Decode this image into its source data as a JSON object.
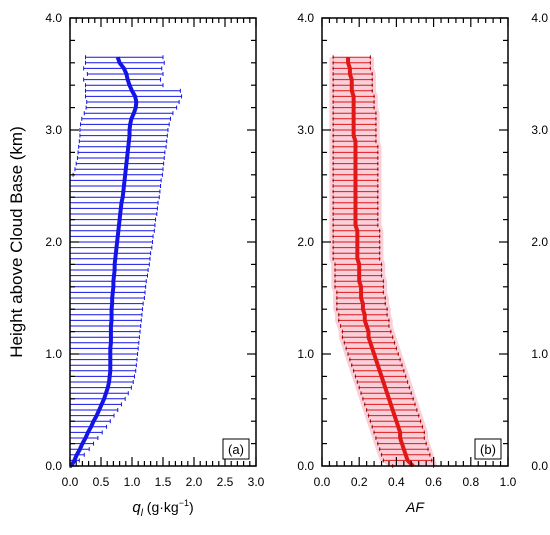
{
  "chart_data": [
    {
      "type": "line",
      "panel_label": "(a)",
      "xlabel_sym": "q",
      "xlabel_sub": "l",
      "xlabel_unit": " (g·kg",
      "xlabel_exp": "−1",
      "xlabel_close": ")",
      "ylabel": "Height above Cloud Base (km)",
      "xlim": [
        0.0,
        3.0
      ],
      "ylim": [
        0.0,
        4.0
      ],
      "x_tick_labels": [
        "0.0",
        "0.5",
        "1.0",
        "1.5",
        "2.0",
        "2.5",
        "3.0"
      ],
      "y_tick_labels": [
        "0.0",
        "1.0",
        "2.0",
        "3.0",
        "4.0"
      ],
      "line_color": "#1414e6",
      "error_color": "#1414e6",
      "series": [
        {
          "height": [
            0.0,
            0.05,
            0.1,
            0.15,
            0.2,
            0.25,
            0.3,
            0.35,
            0.4,
            0.45,
            0.5,
            0.55,
            0.6,
            0.65,
            0.7,
            0.75,
            0.8,
            0.85,
            0.9,
            0.95,
            1.0,
            1.05,
            1.1,
            1.15,
            1.2,
            1.25,
            1.3,
            1.35,
            1.4,
            1.45,
            1.5,
            1.55,
            1.6,
            1.65,
            1.7,
            1.75,
            1.8,
            1.85,
            1.9,
            1.95,
            2.0,
            2.05,
            2.1,
            2.15,
            2.2,
            2.25,
            2.3,
            2.35,
            2.4,
            2.45,
            2.5,
            2.55,
            2.6,
            2.65,
            2.7,
            2.75,
            2.8,
            2.85,
            2.9,
            2.95,
            3.0,
            3.05,
            3.1,
            3.15,
            3.2,
            3.25,
            3.3,
            3.35,
            3.4,
            3.45,
            3.5,
            3.55,
            3.6,
            3.65
          ],
          "mean": [
            0.02,
            0.07,
            0.11,
            0.16,
            0.2,
            0.25,
            0.29,
            0.34,
            0.38,
            0.43,
            0.47,
            0.51,
            0.55,
            0.58,
            0.61,
            0.63,
            0.64,
            0.65,
            0.65,
            0.65,
            0.65,
            0.65,
            0.66,
            0.66,
            0.66,
            0.66,
            0.67,
            0.67,
            0.67,
            0.68,
            0.68,
            0.69,
            0.7,
            0.7,
            0.71,
            0.72,
            0.72,
            0.73,
            0.74,
            0.75,
            0.76,
            0.77,
            0.78,
            0.79,
            0.8,
            0.81,
            0.82,
            0.83,
            0.85,
            0.86,
            0.87,
            0.88,
            0.89,
            0.9,
            0.91,
            0.92,
            0.93,
            0.94,
            0.95,
            0.96,
            0.96,
            0.97,
            0.99,
            1.03,
            1.06,
            1.07,
            1.05,
            1.0,
            0.96,
            0.93,
            0.91,
            0.87,
            0.8,
            0.77
          ],
          "lower": [
            0.0,
            0.0,
            0.0,
            0.0,
            0.0,
            0.0,
            0.0,
            0.0,
            0.0,
            0.0,
            0.0,
            0.0,
            0.0,
            0.0,
            0.0,
            0.0,
            0.0,
            0.0,
            0.0,
            0.0,
            0.0,
            0.0,
            0.0,
            0.0,
            0.0,
            0.0,
            0.0,
            0.0,
            0.0,
            0.0,
            0.0,
            0.0,
            0.0,
            0.0,
            0.0,
            0.0,
            0.0,
            0.0,
            0.0,
            0.0,
            0.0,
            0.0,
            0.0,
            0.0,
            0.0,
            0.0,
            0.0,
            0.0,
            0.0,
            0.0,
            0.0,
            0.0,
            0.05,
            0.08,
            0.1,
            0.12,
            0.13,
            0.14,
            0.15,
            0.16,
            0.16,
            0.17,
            0.19,
            0.23,
            0.26,
            0.27,
            0.25,
            0.25,
            0.25,
            0.22,
            0.28,
            0.22,
            0.25,
            0.25
          ],
          "upper": [
            0.02,
            0.15,
            0.23,
            0.31,
            0.38,
            0.45,
            0.52,
            0.59,
            0.65,
            0.71,
            0.77,
            0.83,
            0.89,
            0.94,
            0.99,
            1.02,
            1.04,
            1.06,
            1.07,
            1.08,
            1.09,
            1.1,
            1.11,
            1.12,
            1.13,
            1.14,
            1.15,
            1.16,
            1.17,
            1.18,
            1.2,
            1.21,
            1.22,
            1.23,
            1.25,
            1.26,
            1.28,
            1.29,
            1.3,
            1.32,
            1.33,
            1.34,
            1.36,
            1.37,
            1.38,
            1.4,
            1.41,
            1.42,
            1.44,
            1.45,
            1.46,
            1.47,
            1.49,
            1.5,
            1.51,
            1.52,
            1.53,
            1.55,
            1.56,
            1.57,
            1.58,
            1.6,
            1.62,
            1.66,
            1.72,
            1.76,
            1.8,
            1.78,
            1.5,
            1.46,
            1.5,
            1.48,
            1.52,
            1.5
          ]
        }
      ]
    },
    {
      "type": "line",
      "panel_label": "(b)",
      "xlabel": "AF",
      "xlim": [
        0.0,
        1.0
      ],
      "ylim": [
        0.0,
        4.0
      ],
      "x_tick_labels": [
        "0.0",
        "0.2",
        "0.4",
        "0.6",
        "0.8",
        "1.0"
      ],
      "y_tick_labels": [
        "0.0",
        "1.0",
        "2.0",
        "3.0",
        "4.0"
      ],
      "line_color": "#e01818",
      "error_color": "#e01818",
      "shade_color": "#f8c8d4",
      "series": [
        {
          "height": [
            0.0,
            0.05,
            0.1,
            0.15,
            0.2,
            0.25,
            0.3,
            0.35,
            0.4,
            0.45,
            0.5,
            0.55,
            0.6,
            0.65,
            0.7,
            0.75,
            0.8,
            0.85,
            0.9,
            0.95,
            1.0,
            1.05,
            1.1,
            1.15,
            1.2,
            1.25,
            1.3,
            1.35,
            1.4,
            1.45,
            1.5,
            1.55,
            1.6,
            1.65,
            1.7,
            1.75,
            1.8,
            1.85,
            1.9,
            1.95,
            2.0,
            2.05,
            2.1,
            2.15,
            2.2,
            2.25,
            2.3,
            2.35,
            2.4,
            2.45,
            2.5,
            2.55,
            2.6,
            2.65,
            2.7,
            2.75,
            2.8,
            2.85,
            2.9,
            2.95,
            3.0,
            3.05,
            3.1,
            3.15,
            3.2,
            3.25,
            3.3,
            3.35,
            3.4,
            3.45,
            3.5,
            3.55,
            3.6,
            3.65
          ],
          "mean": [
            0.49,
            0.46,
            0.45,
            0.44,
            0.43,
            0.42,
            0.42,
            0.41,
            0.4,
            0.39,
            0.38,
            0.37,
            0.36,
            0.35,
            0.34,
            0.33,
            0.32,
            0.31,
            0.3,
            0.29,
            0.28,
            0.27,
            0.26,
            0.25,
            0.25,
            0.24,
            0.23,
            0.23,
            0.22,
            0.22,
            0.21,
            0.21,
            0.21,
            0.2,
            0.2,
            0.2,
            0.2,
            0.19,
            0.19,
            0.19,
            0.19,
            0.19,
            0.19,
            0.18,
            0.18,
            0.18,
            0.18,
            0.18,
            0.18,
            0.18,
            0.18,
            0.18,
            0.18,
            0.18,
            0.18,
            0.18,
            0.18,
            0.18,
            0.18,
            0.17,
            0.17,
            0.17,
            0.17,
            0.17,
            0.17,
            0.17,
            0.17,
            0.16,
            0.16,
            0.16,
            0.15,
            0.15,
            0.14,
            0.14
          ],
          "lower": [
            0.38,
            0.33,
            0.32,
            0.31,
            0.3,
            0.29,
            0.28,
            0.27,
            0.26,
            0.25,
            0.24,
            0.23,
            0.22,
            0.21,
            0.2,
            0.19,
            0.18,
            0.17,
            0.16,
            0.15,
            0.14,
            0.13,
            0.12,
            0.11,
            0.11,
            0.1,
            0.09,
            0.09,
            0.08,
            0.08,
            0.08,
            0.08,
            0.07,
            0.07,
            0.07,
            0.07,
            0.07,
            0.06,
            0.06,
            0.06,
            0.06,
            0.06,
            0.06,
            0.06,
            0.06,
            0.06,
            0.06,
            0.06,
            0.06,
            0.06,
            0.06,
            0.06,
            0.06,
            0.06,
            0.06,
            0.06,
            0.06,
            0.06,
            0.06,
            0.06,
            0.06,
            0.06,
            0.06,
            0.06,
            0.06,
            0.06,
            0.06,
            0.06,
            0.06,
            0.06,
            0.06,
            0.06,
            0.06,
            0.06
          ],
          "upper": [
            0.6,
            0.59,
            0.58,
            0.57,
            0.56,
            0.55,
            0.55,
            0.54,
            0.53,
            0.52,
            0.51,
            0.5,
            0.49,
            0.48,
            0.47,
            0.46,
            0.45,
            0.44,
            0.43,
            0.42,
            0.41,
            0.4,
            0.39,
            0.38,
            0.37,
            0.36,
            0.36,
            0.35,
            0.35,
            0.34,
            0.34,
            0.33,
            0.33,
            0.33,
            0.32,
            0.32,
            0.32,
            0.31,
            0.31,
            0.31,
            0.31,
            0.31,
            0.31,
            0.3,
            0.3,
            0.3,
            0.3,
            0.3,
            0.3,
            0.3,
            0.3,
            0.3,
            0.3,
            0.3,
            0.3,
            0.3,
            0.3,
            0.3,
            0.29,
            0.29,
            0.29,
            0.29,
            0.29,
            0.29,
            0.28,
            0.28,
            0.28,
            0.27,
            0.27,
            0.27,
            0.27,
            0.26,
            0.26,
            0.26
          ]
        }
      ]
    }
  ]
}
